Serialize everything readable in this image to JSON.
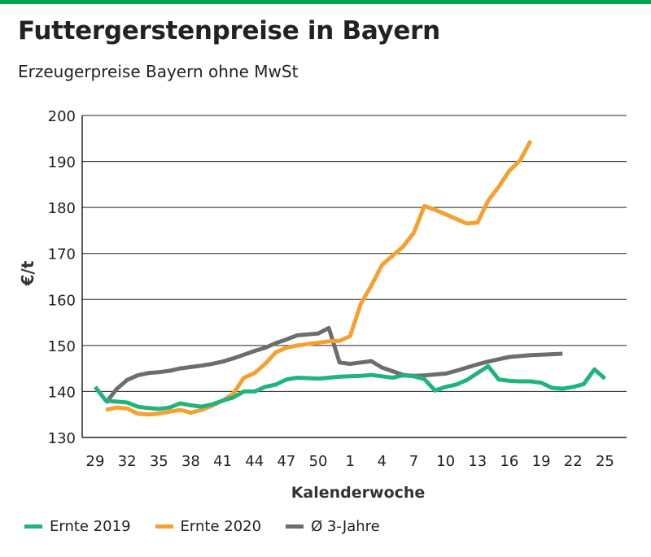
{
  "colors": {
    "brand_bar": "#00a651",
    "series_2019": "#1fb57a",
    "series_2020": "#f5a030",
    "series_avg": "#6d6d6d",
    "grid": "#222222"
  },
  "header": {
    "title": "Futtergerstenpreise in Bayern",
    "subtitle": "Erzeugerpreise Bayern ohne MwSt"
  },
  "chart_data": {
    "type": "line",
    "xlabel": "Kalenderwoche",
    "ylabel": "€/t",
    "ylim": [
      130,
      200
    ],
    "yticks": [
      130,
      140,
      150,
      160,
      170,
      180,
      190,
      200
    ],
    "grid": "horizontal",
    "legend_position": "bottom-left",
    "x_categories": [
      29,
      30,
      31,
      32,
      33,
      34,
      35,
      36,
      37,
      38,
      39,
      40,
      41,
      42,
      43,
      44,
      45,
      46,
      47,
      48,
      49,
      50,
      51,
      52,
      1,
      2,
      3,
      4,
      5,
      6,
      7,
      8,
      9,
      10,
      11,
      12,
      13,
      14,
      15,
      16,
      17,
      18,
      19,
      20,
      21,
      22,
      23,
      24,
      25,
      26
    ],
    "x_tick_labels": [
      "29",
      "32",
      "35",
      "38",
      "41",
      "44",
      "47",
      "50",
      "1",
      "4",
      "7",
      "10",
      "13",
      "16",
      "19",
      "22",
      "25"
    ],
    "series": [
      {
        "name": "Ernte 2019",
        "color_key": "series_2019",
        "values": [
          141,
          138,
          137.8,
          137.6,
          136.7,
          136.4,
          136.2,
          136.5,
          137.4,
          137,
          136.7,
          137.2,
          138,
          138.7,
          140,
          140,
          141,
          141.5,
          142.6,
          143,
          142.9,
          142.8,
          143,
          143.2,
          143.3,
          143.4,
          143.6,
          143.3,
          143,
          143.5,
          143.3,
          142.7,
          140.2,
          141,
          141.5,
          142.5,
          144,
          145.5,
          142.6,
          142.3,
          142.2,
          142.2,
          141.9,
          140.8,
          140.6,
          141,
          141.6,
          144.8,
          142.8
        ]
      },
      {
        "name": "Ernte 2020",
        "color_key": "series_2020",
        "values": [
          null,
          136,
          136.5,
          136.3,
          135.2,
          135,
          135.2,
          135.6,
          136,
          135.4,
          136,
          136.9,
          138,
          139.5,
          143,
          144,
          146,
          148.5,
          149.5,
          150,
          150.3,
          150.6,
          150.9,
          151,
          152,
          159,
          163,
          167.5,
          169.5,
          171.5,
          174.5,
          180.3,
          179.5,
          178.5,
          177.5,
          176.5,
          176.7,
          181.5,
          184.5,
          188,
          190.2,
          194.5
        ]
      },
      {
        "name": "Ø 3-Jahre",
        "color_key": "series_avg",
        "values": [
          null,
          137.5,
          140.5,
          142.5,
          143.5,
          144,
          144.2,
          144.5,
          145,
          145.3,
          145.6,
          146,
          146.5,
          147.2,
          148,
          148.8,
          149.5,
          150.5,
          151.3,
          152.2,
          152.4,
          152.6,
          153.8,
          146.3,
          146,
          146.3,
          146.6,
          145.2,
          144.4,
          143.6,
          143.4,
          143.5,
          143.7,
          143.9,
          144.5,
          145.2,
          145.9,
          146.5,
          147,
          147.5,
          147.7,
          147.9,
          148,
          148.1,
          148.2
        ]
      }
    ]
  }
}
